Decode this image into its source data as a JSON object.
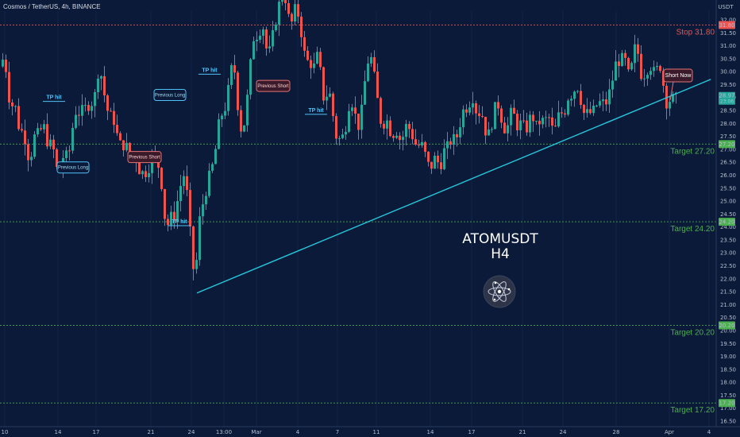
{
  "header": {
    "title": "Cosmos / TetherUS, 4h, BINANCE",
    "currency": "USDT"
  },
  "colors": {
    "background": "#0b1a38",
    "up": "#26a69a",
    "down": "#ef5350",
    "trendline": "#26c6da",
    "target": "#4caf50",
    "stop": "#ef5350",
    "tp": "#4fc3f7"
  },
  "icons": [
    "cosmos-atom-logo-icon"
  ],
  "chart_data": {
    "type": "candlestick",
    "title": "ATOMUSDT",
    "subtitle": "H4",
    "ylim": [
      16.25,
      32.6
    ],
    "y_ticks": [
      "16.50",
      "17.00",
      "17.50",
      "18.00",
      "18.50",
      "19.00",
      "19.50",
      "20.00",
      "20.50",
      "21.00",
      "21.50",
      "22.00",
      "22.50",
      "23.00",
      "23.50",
      "24.00",
      "24.50",
      "25.00",
      "25.50",
      "26.00",
      "26.50",
      "27.00",
      "27.50",
      "28.00",
      "28.50",
      "29.00",
      "29.50",
      "30.00",
      "30.50",
      "31.00",
      "31.50",
      "32.00"
    ],
    "x_ticks": [
      "10",
      "14",
      "17",
      "21",
      "24",
      "13:00",
      "Mar",
      "4",
      "7",
      "11",
      "14",
      "17",
      "21",
      "24",
      "28",
      "Apr",
      "4"
    ],
    "current_price": {
      "label": "28.97",
      "sub": "23:06",
      "value": 28.97
    },
    "close_path": [
      [
        0,
        30.2
      ],
      [
        6,
        30.6
      ],
      [
        10,
        29.6
      ],
      [
        14,
        28.4
      ],
      [
        18,
        29.0
      ],
      [
        22,
        28.2
      ],
      [
        26,
        27.6
      ],
      [
        30,
        27.8
      ],
      [
        34,
        27.0
      ],
      [
        38,
        26.5
      ],
      [
        42,
        27.2
      ],
      [
        46,
        27.8
      ],
      [
        50,
        27.4
      ],
      [
        54,
        28.1
      ],
      [
        58,
        27.6
      ],
      [
        62,
        27.0
      ],
      [
        66,
        27.4
      ],
      [
        70,
        26.5
      ],
      [
        74,
        26.0
      ],
      [
        78,
        26.4
      ],
      [
        82,
        27.0
      ],
      [
        86,
        26.5
      ],
      [
        90,
        27.4
      ],
      [
        94,
        28.3
      ],
      [
        98,
        28.6
      ],
      [
        102,
        28.2
      ],
      [
        106,
        28.8
      ],
      [
        110,
        28.4
      ],
      [
        114,
        29.0
      ],
      [
        118,
        28.6
      ],
      [
        122,
        29.6
      ],
      [
        126,
        30.3
      ],
      [
        130,
        29.4
      ],
      [
        134,
        28.8
      ],
      [
        138,
        28.2
      ],
      [
        142,
        28.4
      ],
      [
        146,
        27.8
      ],
      [
        150,
        27.3
      ],
      [
        154,
        27.1
      ],
      [
        158,
        27.2
      ],
      [
        162,
        27.0
      ],
      [
        166,
        26.5
      ],
      [
        170,
        26.8
      ],
      [
        174,
        26.4
      ],
      [
        178,
        26.0
      ],
      [
        182,
        26.2
      ],
      [
        186,
        26.0
      ],
      [
        190,
        26.6
      ],
      [
        194,
        26.9
      ],
      [
        198,
        26.6
      ],
      [
        202,
        26.1
      ],
      [
        206,
        25.2
      ],
      [
        210,
        23.6
      ],
      [
        214,
        24.6
      ],
      [
        218,
        24.2
      ],
      [
        222,
        24.6
      ],
      [
        226,
        25.4
      ],
      [
        230,
        25.8
      ],
      [
        234,
        26.2
      ],
      [
        238,
        24.4
      ],
      [
        242,
        23.2
      ],
      [
        246,
        21.6
      ],
      [
        250,
        23.8
      ],
      [
        254,
        24.8
      ],
      [
        258,
        25.0
      ],
      [
        262,
        25.8
      ],
      [
        266,
        26.1
      ],
      [
        270,
        26.6
      ],
      [
        274,
        27.4
      ],
      [
        278,
        28.5
      ],
      [
        282,
        28.2
      ],
      [
        286,
        29.0
      ],
      [
        290,
        29.6
      ],
      [
        294,
        30.6
      ],
      [
        298,
        29.4
      ],
      [
        302,
        28.0
      ],
      [
        306,
        27.6
      ],
      [
        310,
        28.4
      ],
      [
        314,
        29.6
      ],
      [
        318,
        31.0
      ],
      [
        322,
        31.6
      ],
      [
        326,
        31.2
      ],
      [
        330,
        32.0
      ],
      [
        334,
        31.4
      ],
      [
        338,
        30.4
      ],
      [
        342,
        31.2
      ],
      [
        346,
        31.6
      ],
      [
        350,
        32.4
      ],
      [
        354,
        32.8
      ],
      [
        358,
        33.0
      ],
      [
        362,
        32.6
      ],
      [
        366,
        31.6
      ],
      [
        370,
        32.2
      ],
      [
        374,
        32.6
      ],
      [
        378,
        31.8
      ],
      [
        382,
        31.2
      ],
      [
        386,
        30.2
      ],
      [
        390,
        30.6
      ],
      [
        394,
        30.0
      ],
      [
        398,
        30.4
      ],
      [
        402,
        30.8
      ],
      [
        406,
        29.2
      ],
      [
        410,
        28.8
      ],
      [
        414,
        29.4
      ],
      [
        418,
        28.8
      ],
      [
        422,
        27.8
      ],
      [
        426,
        27.2
      ],
      [
        430,
        27.6
      ],
      [
        434,
        27.4
      ],
      [
        438,
        28.4
      ],
      [
        442,
        29.0
      ],
      [
        446,
        28.6
      ],
      [
        450,
        28.0
      ],
      [
        454,
        27.8
      ],
      [
        458,
        29.2
      ],
      [
        462,
        30.0
      ],
      [
        466,
        30.8
      ],
      [
        470,
        30.2
      ],
      [
        474,
        29.4
      ],
      [
        478,
        28.4
      ],
      [
        482,
        27.8
      ],
      [
        486,
        28.2
      ],
      [
        490,
        28.0
      ],
      [
        494,
        27.4
      ],
      [
        498,
        27.8
      ],
      [
        502,
        27.6
      ],
      [
        506,
        27.2
      ],
      [
        510,
        27.8
      ],
      [
        514,
        28.0
      ],
      [
        518,
        27.6
      ],
      [
        522,
        27.4
      ],
      [
        526,
        27.0
      ],
      [
        530,
        27.3
      ],
      [
        534,
        27.0
      ],
      [
        538,
        26.6
      ],
      [
        542,
        26.2
      ],
      [
        546,
        26.5
      ],
      [
        550,
        26.8
      ],
      [
        554,
        26.2
      ],
      [
        558,
        26.7
      ],
      [
        562,
        27.2
      ],
      [
        566,
        27.0
      ],
      [
        570,
        27.6
      ],
      [
        574,
        27.2
      ],
      [
        578,
        27.8
      ],
      [
        582,
        28.2
      ],
      [
        586,
        28.8
      ],
      [
        590,
        28.4
      ],
      [
        594,
        29.2
      ],
      [
        598,
        28.8
      ],
      [
        602,
        28.2
      ],
      [
        606,
        28.6
      ],
      [
        610,
        28.0
      ],
      [
        614,
        27.4
      ],
      [
        618,
        27.8
      ],
      [
        622,
        28.2
      ],
      [
        626,
        29.0
      ],
      [
        630,
        28.4
      ],
      [
        634,
        28.0
      ],
      [
        638,
        27.6
      ],
      [
        642,
        28.2
      ],
      [
        646,
        28.6
      ],
      [
        650,
        28.0
      ],
      [
        654,
        27.8
      ],
      [
        658,
        28.2
      ],
      [
        662,
        27.6
      ],
      [
        666,
        28.0
      ],
      [
        670,
        28.4
      ],
      [
        674,
        28.0
      ],
      [
        678,
        27.8
      ],
      [
        682,
        28.3
      ],
      [
        686,
        27.9
      ],
      [
        690,
        28.4
      ],
      [
        694,
        28.0
      ],
      [
        698,
        27.6
      ],
      [
        702,
        28.0
      ],
      [
        706,
        28.6
      ],
      [
        710,
        28.2
      ],
      [
        714,
        28.8
      ],
      [
        718,
        29.2
      ],
      [
        722,
        29.0
      ],
      [
        726,
        29.6
      ],
      [
        730,
        29.2
      ],
      [
        734,
        28.6
      ],
      [
        738,
        28.2
      ],
      [
        742,
        28.6
      ],
      [
        746,
        28.2
      ],
      [
        750,
        28.8
      ],
      [
        754,
        28.6
      ],
      [
        758,
        29.0
      ],
      [
        762,
        28.6
      ],
      [
        766,
        29.0
      ],
      [
        770,
        29.4
      ],
      [
        774,
        30.0
      ],
      [
        778,
        30.6
      ],
      [
        782,
        30.2
      ],
      [
        786,
        30.8
      ],
      [
        790,
        30.0
      ],
      [
        794,
        29.8
      ],
      [
        798,
        30.6
      ],
      [
        802,
        31.2
      ],
      [
        806,
        30.2
      ],
      [
        810,
        29.6
      ],
      [
        814,
        30.2
      ],
      [
        818,
        30.0
      ],
      [
        822,
        30.4
      ],
      [
        826,
        29.6
      ],
      [
        830,
        30.6
      ],
      [
        834,
        29.8
      ],
      [
        838,
        29.2
      ],
      [
        841,
        28.6
      ],
      [
        844,
        28.9
      ],
      [
        848,
        28.97
      ]
    ],
    "lines": [
      {
        "price": 31.8,
        "label": "Stop 31.80",
        "axis_label": "31.80",
        "kind": "stop"
      },
      {
        "price": 27.2,
        "label": "Target 27.20",
        "axis_label": "27.20",
        "kind": "target"
      },
      {
        "price": 24.2,
        "label": "Target 24.20",
        "axis_label": "24.20",
        "kind": "target"
      },
      {
        "price": 20.2,
        "label": "Target 20.20",
        "axis_label": "20.20",
        "kind": "target"
      },
      {
        "price": 17.2,
        "label": "Target 17.20",
        "axis_label": "17.20",
        "kind": "target"
      }
    ],
    "trendline": {
      "from": {
        "bar": 246,
        "price": 21.45
      },
      "to": {
        "bar": 893,
        "price": 29.7
      }
    },
    "annotations": [
      {
        "text": "TP hit",
        "type": "tp",
        "bar": 66,
        "price": 28.85
      },
      {
        "text": "TP hit",
        "type": "tp",
        "bar": 262,
        "price": 29.9
      },
      {
        "text": "TP hit",
        "type": "tp",
        "bar": 224,
        "price": 24.05
      },
      {
        "text": "TP hit",
        "type": "tp",
        "bar": 396,
        "price": 28.35
      },
      {
        "text": "Previous Long",
        "type": "callout-long",
        "bar": 90,
        "price": 26.3
      },
      {
        "text": "Previous Long",
        "type": "callout-long",
        "bar": 212,
        "price": 29.1
      },
      {
        "text": "Previous Short",
        "type": "callout-short",
        "bar": 180,
        "price": 26.7
      },
      {
        "text": "Previous Short",
        "type": "callout-short",
        "bar": 342,
        "price": 29.45
      },
      {
        "text": "Short Now",
        "type": "callout-now",
        "bar": 852,
        "price": 29.85
      }
    ]
  }
}
